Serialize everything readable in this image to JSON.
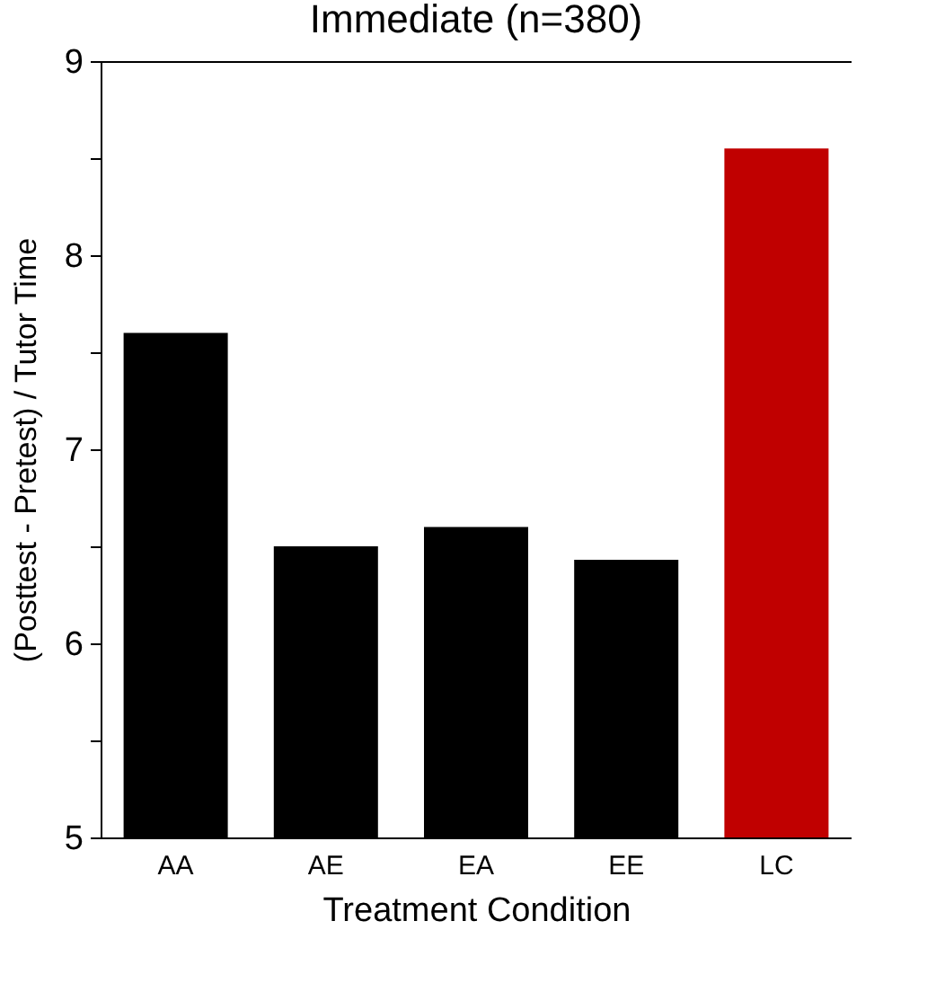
{
  "chart_data": {
    "type": "bar",
    "title": "Immediate (n=380)",
    "xlabel": "Treatment Condition",
    "ylabel": "(Posttest - Pretest) / Tutor Time",
    "categories": [
      "AA",
      "AE",
      "EA",
      "EE",
      "LC"
    ],
    "values": [
      7.6,
      6.5,
      6.6,
      6.43,
      8.55
    ],
    "colors": [
      "#000000",
      "#000000",
      "#000000",
      "#000000",
      "#c00000"
    ],
    "ylim": [
      5,
      9
    ],
    "yticks": [
      5,
      {
        "value": 5.5,
        "label": null
      },
      6,
      {
        "value": 6.5,
        "label": null
      },
      7,
      {
        "value": 7.5,
        "label": null
      },
      8,
      {
        "value": 8.5,
        "label": null
      },
      9
    ],
    "grid": false
  }
}
